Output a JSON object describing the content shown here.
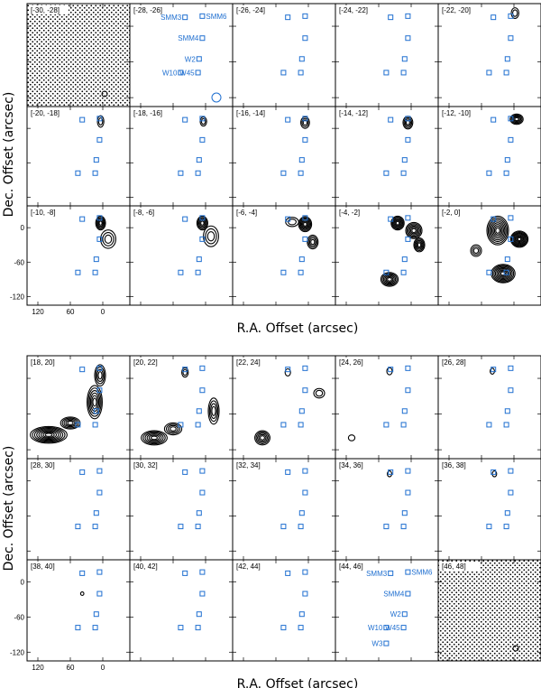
{
  "chart_data": {
    "type": "contour",
    "xlabel": "R.A. Offset (arcsec)",
    "ylabel": "Dec. Offset (arcsec)",
    "x_ticks": [
      120,
      60,
      0
    ],
    "y_ticks": [
      0,
      -60,
      -120
    ],
    "xlim": [
      140,
      -50
    ],
    "ylim": [
      -135,
      38
    ],
    "sources": [
      {
        "name": "SMM3",
        "x": 38,
        "y": 15
      },
      {
        "name": "SMM6",
        "x": 6,
        "y": 17
      },
      {
        "name": "SMM4",
        "x": 6,
        "y": -20
      },
      {
        "name": "W2",
        "x": 12,
        "y": -55
      },
      {
        "name": "W45",
        "x": 14,
        "y": -78
      },
      {
        "name": "W10",
        "x": 46,
        "y": -78
      },
      {
        "name": "W3",
        "x": 46,
        "y": -105
      }
    ],
    "marker_color": "#1f6fd0",
    "panels": [
      {
        "label": "[-30, -28]",
        "hatched": true
      },
      {
        "label": "[-28, -26]",
        "source_labels": [
          "SMM3",
          "SMM6",
          "SMM4",
          "W2",
          "W45",
          "W10"
        ]
      },
      {
        "label": "[-26, -24]"
      },
      {
        "label": "[-24, -22]"
      },
      {
        "label": "[-22, -20]"
      },
      {
        "label": "[-20, -18]"
      },
      {
        "label": "[-18, -16]"
      },
      {
        "label": "[-16, -14]"
      },
      {
        "label": "[-14, -12]"
      },
      {
        "label": "[-12, -10]"
      },
      {
        "label": "[-10, -8]"
      },
      {
        "label": "[-8, -6]"
      },
      {
        "label": "[-6, -4]"
      },
      {
        "label": "[-4, -2]"
      },
      {
        "label": "[-2, 0]"
      },
      {
        "label": "[18, 20]"
      },
      {
        "label": "[20, 22]"
      },
      {
        "label": "[22, 24]"
      },
      {
        "label": "[24, 26]"
      },
      {
        "label": "[26, 28]"
      },
      {
        "label": "[28, 30]"
      },
      {
        "label": "[30, 32]"
      },
      {
        "label": "[32, 34]"
      },
      {
        "label": "[34, 36]"
      },
      {
        "label": "[36, 38]"
      },
      {
        "label": "[38, 40]"
      },
      {
        "label": "[40, 42]"
      },
      {
        "label": "[42, 44]"
      },
      {
        "label": "[44, 46]",
        "source_labels": [
          "SMM3",
          "SMM6",
          "SMM4",
          "W2",
          "W45",
          "W10",
          "W3"
        ]
      },
      {
        "label": "[46, 48]",
        "hatched": true
      }
    ]
  }
}
